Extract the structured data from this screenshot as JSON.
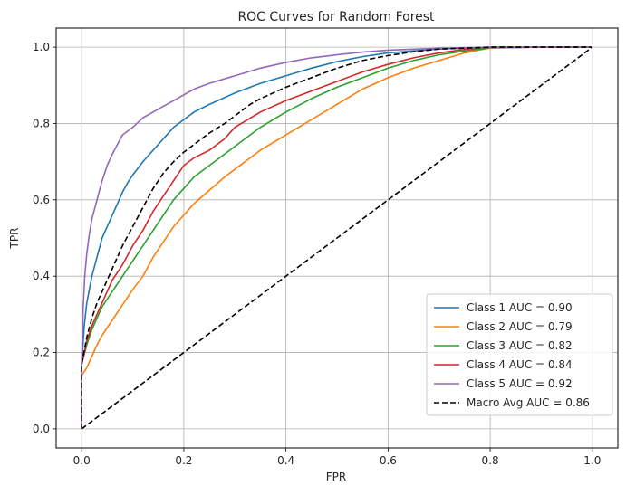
{
  "chart_data": {
    "type": "line",
    "title": "ROC Curves for Random Forest",
    "xlabel": "FPR",
    "ylabel": "TPR",
    "xlim": [
      -0.05,
      1.05
    ],
    "ylim": [
      -0.05,
      1.05
    ],
    "xticks": [
      "0.0",
      "0.2",
      "0.4",
      "0.6",
      "0.8",
      "1.0"
    ],
    "yticks": [
      "0.0",
      "0.2",
      "0.4",
      "0.6",
      "0.8",
      "1.0"
    ],
    "grid": true,
    "legend_position": "lower-right",
    "series": [
      {
        "name": "Class 1 AUC = 0.90",
        "color": "#1f77b4",
        "dash": "solid",
        "points": [
          [
            0,
            0
          ],
          [
            0,
            0.17
          ],
          [
            0.005,
            0.27
          ],
          [
            0.01,
            0.33
          ],
          [
            0.02,
            0.4
          ],
          [
            0.03,
            0.45
          ],
          [
            0.04,
            0.5
          ],
          [
            0.05,
            0.53
          ],
          [
            0.06,
            0.56
          ],
          [
            0.07,
            0.59
          ],
          [
            0.08,
            0.62
          ],
          [
            0.09,
            0.645
          ],
          [
            0.1,
            0.665
          ],
          [
            0.12,
            0.7
          ],
          [
            0.14,
            0.73
          ],
          [
            0.16,
            0.76
          ],
          [
            0.18,
            0.79
          ],
          [
            0.2,
            0.81
          ],
          [
            0.22,
            0.83
          ],
          [
            0.25,
            0.85
          ],
          [
            0.3,
            0.88
          ],
          [
            0.35,
            0.905
          ],
          [
            0.4,
            0.925
          ],
          [
            0.45,
            0.945
          ],
          [
            0.5,
            0.962
          ],
          [
            0.55,
            0.975
          ],
          [
            0.6,
            0.985
          ],
          [
            0.7,
            0.995
          ],
          [
            0.8,
            1.0
          ],
          [
            1.0,
            1.0
          ]
        ]
      },
      {
        "name": "Class 2 AUC = 0.79",
        "color": "#ff7f0e",
        "dash": "solid",
        "points": [
          [
            0,
            0
          ],
          [
            0,
            0.14
          ],
          [
            0.01,
            0.16
          ],
          [
            0.02,
            0.19
          ],
          [
            0.03,
            0.22
          ],
          [
            0.04,
            0.245
          ],
          [
            0.05,
            0.265
          ],
          [
            0.06,
            0.285
          ],
          [
            0.07,
            0.305
          ],
          [
            0.08,
            0.325
          ],
          [
            0.1,
            0.365
          ],
          [
            0.12,
            0.4
          ],
          [
            0.14,
            0.45
          ],
          [
            0.16,
            0.49
          ],
          [
            0.18,
            0.53
          ],
          [
            0.2,
            0.56
          ],
          [
            0.22,
            0.59
          ],
          [
            0.25,
            0.625
          ],
          [
            0.28,
            0.66
          ],
          [
            0.3,
            0.68
          ],
          [
            0.33,
            0.71
          ],
          [
            0.35,
            0.73
          ],
          [
            0.4,
            0.77
          ],
          [
            0.45,
            0.81
          ],
          [
            0.5,
            0.85
          ],
          [
            0.55,
            0.89
          ],
          [
            0.6,
            0.92
          ],
          [
            0.65,
            0.945
          ],
          [
            0.7,
            0.965
          ],
          [
            0.75,
            0.985
          ],
          [
            0.8,
            0.998
          ],
          [
            0.9,
            1.0
          ],
          [
            1.0,
            1.0
          ]
        ]
      },
      {
        "name": "Class 3 AUC = 0.82",
        "color": "#2ca02c",
        "dash": "solid",
        "points": [
          [
            0,
            0
          ],
          [
            0,
            0.17
          ],
          [
            0.01,
            0.22
          ],
          [
            0.02,
            0.26
          ],
          [
            0.03,
            0.29
          ],
          [
            0.04,
            0.32
          ],
          [
            0.05,
            0.34
          ],
          [
            0.06,
            0.36
          ],
          [
            0.08,
            0.4
          ],
          [
            0.1,
            0.44
          ],
          [
            0.12,
            0.48
          ],
          [
            0.14,
            0.52
          ],
          [
            0.16,
            0.56
          ],
          [
            0.18,
            0.6
          ],
          [
            0.2,
            0.63
          ],
          [
            0.22,
            0.66
          ],
          [
            0.25,
            0.69
          ],
          [
            0.3,
            0.74
          ],
          [
            0.35,
            0.79
          ],
          [
            0.4,
            0.83
          ],
          [
            0.45,
            0.865
          ],
          [
            0.5,
            0.895
          ],
          [
            0.55,
            0.92
          ],
          [
            0.6,
            0.945
          ],
          [
            0.65,
            0.965
          ],
          [
            0.7,
            0.98
          ],
          [
            0.75,
            0.99
          ],
          [
            0.8,
            0.998
          ],
          [
            0.9,
            1.0
          ],
          [
            1.0,
            1.0
          ]
        ]
      },
      {
        "name": "Class 4 AUC = 0.84",
        "color": "#d62728",
        "dash": "solid",
        "points": [
          [
            0,
            0
          ],
          [
            0,
            0.17
          ],
          [
            0.01,
            0.23
          ],
          [
            0.02,
            0.27
          ],
          [
            0.03,
            0.3
          ],
          [
            0.04,
            0.33
          ],
          [
            0.05,
            0.36
          ],
          [
            0.06,
            0.39
          ],
          [
            0.08,
            0.43
          ],
          [
            0.1,
            0.48
          ],
          [
            0.12,
            0.52
          ],
          [
            0.14,
            0.57
          ],
          [
            0.16,
            0.61
          ],
          [
            0.18,
            0.65
          ],
          [
            0.2,
            0.69
          ],
          [
            0.22,
            0.71
          ],
          [
            0.25,
            0.73
          ],
          [
            0.28,
            0.76
          ],
          [
            0.3,
            0.79
          ],
          [
            0.35,
            0.83
          ],
          [
            0.4,
            0.86
          ],
          [
            0.45,
            0.885
          ],
          [
            0.5,
            0.91
          ],
          [
            0.55,
            0.935
          ],
          [
            0.6,
            0.955
          ],
          [
            0.65,
            0.972
          ],
          [
            0.7,
            0.985
          ],
          [
            0.75,
            0.994
          ],
          [
            0.8,
            1.0
          ],
          [
            1.0,
            1.0
          ]
        ]
      },
      {
        "name": "Class 5 AUC = 0.92",
        "color": "#9467bd",
        "dash": "solid",
        "points": [
          [
            0,
            0
          ],
          [
            0,
            0.18
          ],
          [
            0.003,
            0.32
          ],
          [
            0.006,
            0.4
          ],
          [
            0.01,
            0.46
          ],
          [
            0.015,
            0.51
          ],
          [
            0.02,
            0.55
          ],
          [
            0.03,
            0.6
          ],
          [
            0.04,
            0.65
          ],
          [
            0.05,
            0.69
          ],
          [
            0.06,
            0.72
          ],
          [
            0.07,
            0.745
          ],
          [
            0.08,
            0.77
          ],
          [
            0.1,
            0.79
          ],
          [
            0.12,
            0.815
          ],
          [
            0.14,
            0.83
          ],
          [
            0.16,
            0.845
          ],
          [
            0.18,
            0.86
          ],
          [
            0.2,
            0.875
          ],
          [
            0.22,
            0.89
          ],
          [
            0.25,
            0.905
          ],
          [
            0.3,
            0.925
          ],
          [
            0.35,
            0.945
          ],
          [
            0.4,
            0.96
          ],
          [
            0.45,
            0.972
          ],
          [
            0.5,
            0.98
          ],
          [
            0.55,
            0.987
          ],
          [
            0.6,
            0.992
          ],
          [
            0.7,
            0.997
          ],
          [
            0.8,
            1.0
          ],
          [
            1.0,
            1.0
          ]
        ]
      },
      {
        "name": "Macro Avg AUC = 0.86",
        "color": "#000000",
        "dash": "dashed",
        "points": [
          [
            0,
            0
          ],
          [
            0,
            0.17
          ],
          [
            0.01,
            0.24
          ],
          [
            0.02,
            0.29
          ],
          [
            0.03,
            0.33
          ],
          [
            0.04,
            0.36
          ],
          [
            0.05,
            0.39
          ],
          [
            0.06,
            0.42
          ],
          [
            0.08,
            0.48
          ],
          [
            0.1,
            0.53
          ],
          [
            0.12,
            0.58
          ],
          [
            0.14,
            0.63
          ],
          [
            0.16,
            0.67
          ],
          [
            0.18,
            0.7
          ],
          [
            0.2,
            0.725
          ],
          [
            0.22,
            0.745
          ],
          [
            0.25,
            0.775
          ],
          [
            0.28,
            0.8
          ],
          [
            0.3,
            0.82
          ],
          [
            0.33,
            0.85
          ],
          [
            0.35,
            0.865
          ],
          [
            0.4,
            0.895
          ],
          [
            0.45,
            0.92
          ],
          [
            0.5,
            0.945
          ],
          [
            0.55,
            0.965
          ],
          [
            0.6,
            0.978
          ],
          [
            0.65,
            0.988
          ],
          [
            0.7,
            0.995
          ],
          [
            0.8,
            1.0
          ],
          [
            1.0,
            1.0
          ]
        ]
      },
      {
        "name": "",
        "color": "#000000",
        "dash": "dashed",
        "points": [
          [
            0,
            0
          ],
          [
            1,
            1
          ]
        ]
      }
    ]
  }
}
